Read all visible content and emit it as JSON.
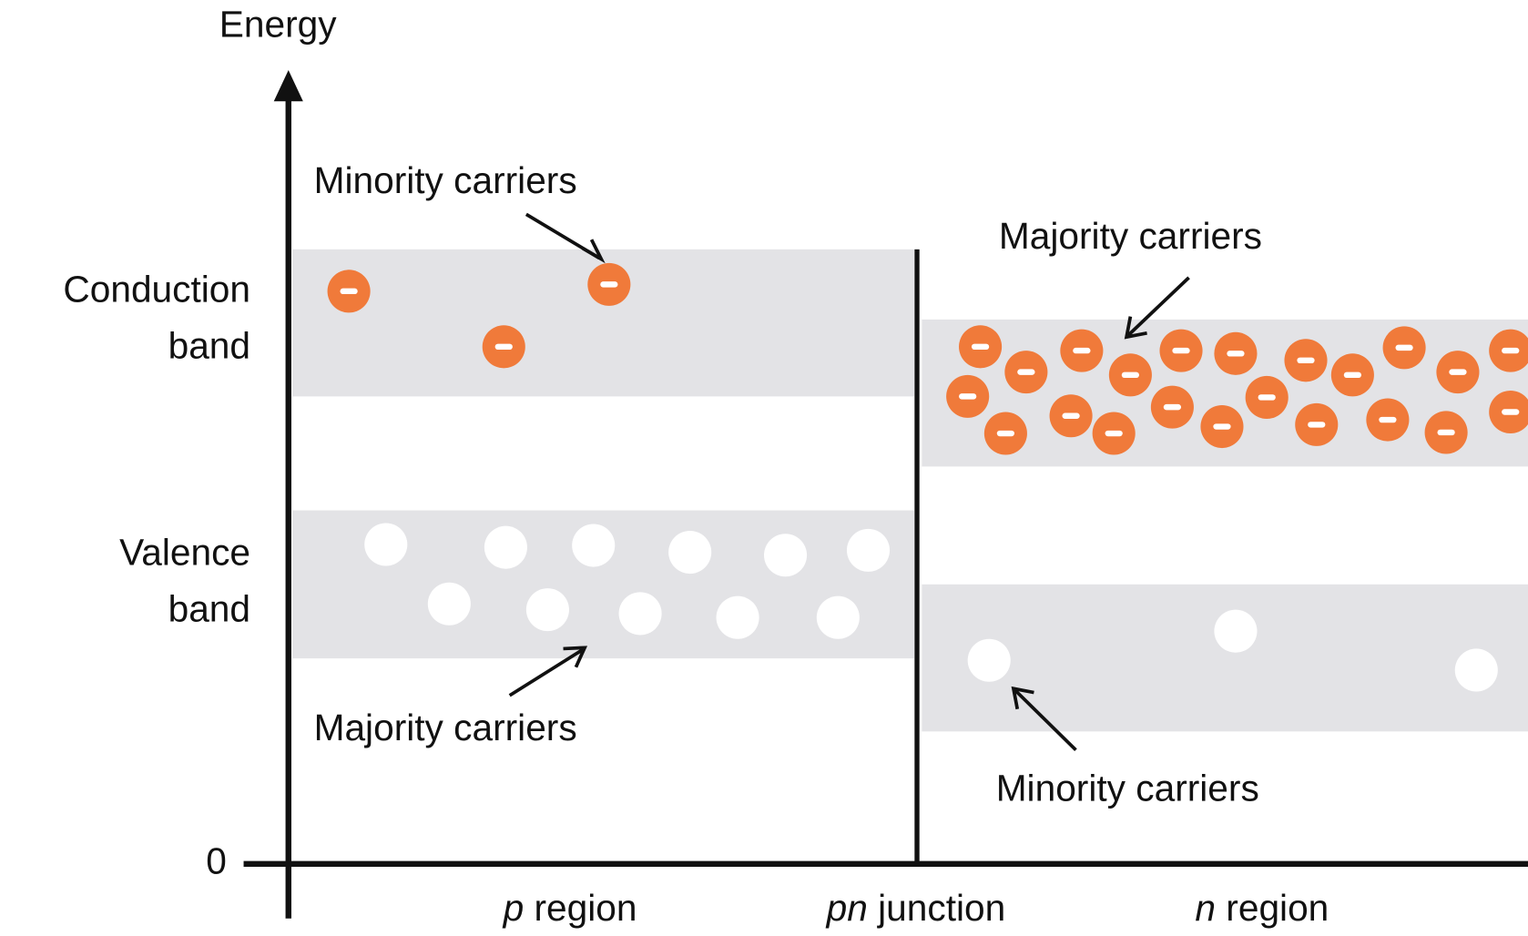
{
  "axis": {
    "y_label": "Energy",
    "origin_label": "0"
  },
  "bands": {
    "conduction": [
      "Conduction",
      "band"
    ],
    "valence": [
      "Valence",
      "band"
    ]
  },
  "annotations": {
    "p_minority": "Minority carriers",
    "n_majority": "Majority carriers",
    "p_majority": "Majority carriers",
    "n_minority": "Minority carriers"
  },
  "x_labels": [
    {
      "italic": "p",
      "text": " region"
    },
    {
      "italic": "pn",
      "text": " junction"
    },
    {
      "italic": "n",
      "text": " region"
    }
  ]
}
